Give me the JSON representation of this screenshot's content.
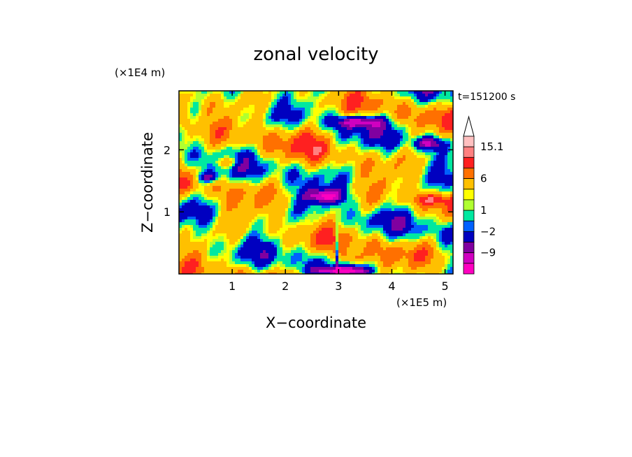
{
  "chart_data": {
    "type": "heatmap",
    "title": "zonal velocity",
    "xlabel": "X−coordinate",
    "ylabel": "Z−coordinate",
    "x_scale_label": "(×1E5 m)",
    "y_scale_label": "(×1E4 m)",
    "time_label": "t=151200 s",
    "xlim": [
      0,
      5.15
    ],
    "ylim": [
      0,
      2.95
    ],
    "x_ticks": [
      {
        "value": 1,
        "label": "1"
      },
      {
        "value": 2,
        "label": "2"
      },
      {
        "value": 3,
        "label": "3"
      },
      {
        "value": 4,
        "label": "4"
      },
      {
        "value": 5,
        "label": "5"
      }
    ],
    "y_ticks": [
      {
        "value": 1,
        "label": "1"
      },
      {
        "value": 2,
        "label": "2"
      }
    ],
    "colorbar": {
      "levels": [
        -15,
        -12,
        -9,
        -6,
        -2,
        -1,
        1,
        2,
        3,
        6,
        9,
        12,
        15.1
      ],
      "colors": [
        "#ff00c0",
        "#d000c0",
        "#8000a0",
        "#0000c0",
        "#0060ff",
        "#00e8a0",
        "#b0ff30",
        "#ffff00",
        "#ffc000",
        "#ff7000",
        "#ff2020",
        "#ff8080",
        "#ffc0c0"
      ],
      "over_color": "#ffffff",
      "tick_labels": [
        {
          "value": 15.1,
          "label": "15.1"
        },
        {
          "value": 6,
          "label": "6"
        },
        {
          "value": 1,
          "label": "1"
        },
        {
          "value": -2,
          "label": "−2"
        },
        {
          "value": -9,
          "label": "−9"
        }
      ]
    }
  }
}
